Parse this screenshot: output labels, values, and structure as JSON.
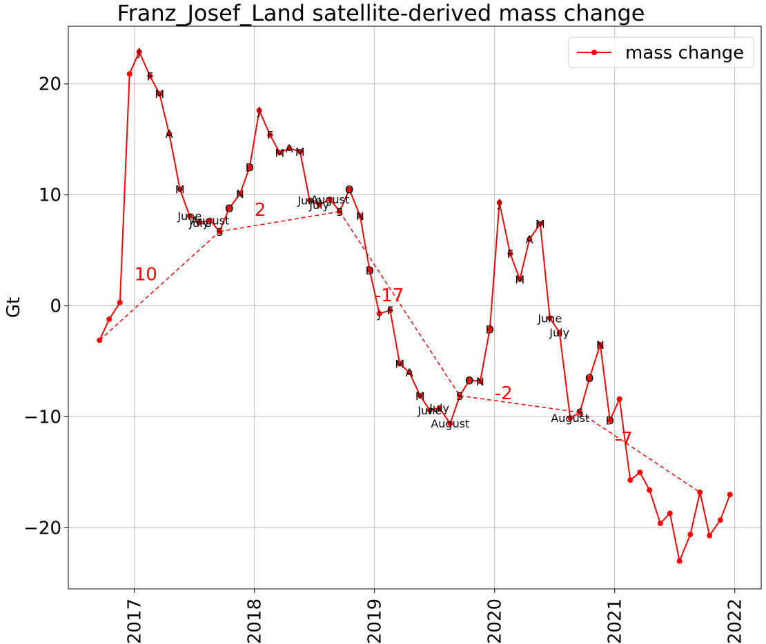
{
  "chart_data": {
    "type": "line",
    "title": "Franz_Josef_Land satellite-derived mass change",
    "xlabel": "",
    "ylabel": "Gt",
    "xlim": [
      2016.45,
      2022.22
    ],
    "ylim": [
      -25.5,
      25.2
    ],
    "grid": true,
    "legend_position": "top-right",
    "colors": {
      "series": "#ff0000",
      "grid": "#b0b0b0",
      "text": "#000000"
    },
    "x_ticks": [
      {
        "value": 2017,
        "label": "2017"
      },
      {
        "value": 2018,
        "label": "2018"
      },
      {
        "value": 2019,
        "label": "2019"
      },
      {
        "value": 2020,
        "label": "2020"
      },
      {
        "value": 2021,
        "label": "2021"
      },
      {
        "value": 2022,
        "label": "2022"
      }
    ],
    "y_ticks": [
      {
        "value": 20,
        "label": "20"
      },
      {
        "value": 10,
        "label": "10"
      },
      {
        "value": 0,
        "label": "0"
      },
      {
        "value": -10,
        "label": "−10"
      },
      {
        "value": -20,
        "label": "−20"
      }
    ],
    "series": [
      {
        "name": "mass change",
        "points": [
          {
            "x": 2016.71,
            "y": -3.1
          },
          {
            "x": 2016.79,
            "y": -1.2
          },
          {
            "x": 2016.88,
            "y": 0.3
          },
          {
            "x": 2016.96,
            "y": 20.9
          },
          {
            "x": 2017.04,
            "y": 22.9,
            "label": "J"
          },
          {
            "x": 2017.13,
            "y": 20.7,
            "label": "F"
          },
          {
            "x": 2017.21,
            "y": 19.1,
            "label": "M"
          },
          {
            "x": 2017.29,
            "y": 15.5,
            "label": "A"
          },
          {
            "x": 2017.38,
            "y": 10.5,
            "label": "M"
          },
          {
            "x": 2017.46,
            "y": 8.1,
            "label": "June"
          },
          {
            "x": 2017.54,
            "y": 7.5,
            "label": "July"
          },
          {
            "x": 2017.63,
            "y": 7.7,
            "label": "August"
          },
          {
            "x": 2017.71,
            "y": 6.7,
            "label": "S"
          },
          {
            "x": 2017.79,
            "y": 8.8,
            "label": "O"
          },
          {
            "x": 2017.88,
            "y": 10.1,
            "label": "N"
          },
          {
            "x": 2017.96,
            "y": 12.5,
            "label": "D"
          },
          {
            "x": 2018.04,
            "y": 17.6,
            "label": "J"
          },
          {
            "x": 2018.13,
            "y": 15.4,
            "label": "F"
          },
          {
            "x": 2018.21,
            "y": 13.8,
            "label": "M"
          },
          {
            "x": 2018.29,
            "y": 14.2,
            "label": "A"
          },
          {
            "x": 2018.38,
            "y": 13.9,
            "label": "M"
          },
          {
            "x": 2018.46,
            "y": 9.5,
            "label": "June"
          },
          {
            "x": 2018.54,
            "y": 9.1,
            "label": "July"
          },
          {
            "x": 2018.63,
            "y": 9.6,
            "label": "August"
          },
          {
            "x": 2018.71,
            "y": 8.5,
            "label": "S"
          },
          {
            "x": 2018.79,
            "y": 10.5,
            "label": "O"
          },
          {
            "x": 2018.88,
            "y": 8.1,
            "label": "N"
          },
          {
            "x": 2018.96,
            "y": 3.2,
            "label": "D"
          },
          {
            "x": 2019.04,
            "y": -0.7,
            "label": "J"
          },
          {
            "x": 2019.13,
            "y": -0.4,
            "label": "F"
          },
          {
            "x": 2019.21,
            "y": -5.2,
            "label": "M"
          },
          {
            "x": 2019.29,
            "y": -6.0,
            "label": "A"
          },
          {
            "x": 2019.38,
            "y": -8.1,
            "label": "M"
          },
          {
            "x": 2019.46,
            "y": -9.4,
            "label": "June"
          },
          {
            "x": 2019.54,
            "y": -9.2,
            "label": "July"
          },
          {
            "x": 2019.63,
            "y": -10.6,
            "label": "August"
          },
          {
            "x": 2019.71,
            "y": -8.1,
            "label": "S"
          },
          {
            "x": 2019.79,
            "y": -6.7,
            "label": "O"
          },
          {
            "x": 2019.88,
            "y": -6.8,
            "label": "N"
          },
          {
            "x": 2019.96,
            "y": -2.1,
            "label": "D"
          },
          {
            "x": 2020.04,
            "y": 9.3,
            "label": "J"
          },
          {
            "x": 2020.13,
            "y": 4.7,
            "label": "F"
          },
          {
            "x": 2020.21,
            "y": 2.4,
            "label": "M"
          },
          {
            "x": 2020.29,
            "y": 6.0,
            "label": "A"
          },
          {
            "x": 2020.38,
            "y": 7.4,
            "label": "M"
          },
          {
            "x": 2020.46,
            "y": -1.1,
            "label": "June"
          },
          {
            "x": 2020.54,
            "y": -2.4,
            "label": "July"
          },
          {
            "x": 2020.63,
            "y": -10.1,
            "label": "August"
          },
          {
            "x": 2020.71,
            "y": -9.6,
            "label": "S"
          },
          {
            "x": 2020.79,
            "y": -6.5,
            "label": "O"
          },
          {
            "x": 2020.88,
            "y": -3.5,
            "label": "N"
          },
          {
            "x": 2020.96,
            "y": -10.3,
            "label": "D"
          },
          {
            "x": 2021.04,
            "y": -8.4
          },
          {
            "x": 2021.13,
            "y": -15.7
          },
          {
            "x": 2021.21,
            "y": -15.0
          },
          {
            "x": 2021.29,
            "y": -16.6
          },
          {
            "x": 2021.38,
            "y": -19.6
          },
          {
            "x": 2021.46,
            "y": -18.7
          },
          {
            "x": 2021.54,
            "y": -23.0
          },
          {
            "x": 2021.63,
            "y": -20.6
          },
          {
            "x": 2021.71,
            "y": -16.8
          },
          {
            "x": 2021.79,
            "y": -20.7
          },
          {
            "x": 2021.88,
            "y": -19.3
          },
          {
            "x": 2021.96,
            "y": -17.0
          }
        ]
      }
    ],
    "trend_lines": [
      {
        "x0": 2016.71,
        "y0": -3.1,
        "x1": 2017.71,
        "y1": 6.7,
        "label": "10",
        "label_x": 2017.0,
        "label_y": 2.3
      },
      {
        "x0": 2017.71,
        "y0": 6.7,
        "x1": 2018.71,
        "y1": 8.5,
        "label": "2",
        "label_x": 2018.0,
        "label_y": 8.1
      },
      {
        "x0": 2018.71,
        "y0": 8.5,
        "x1": 2019.71,
        "y1": -8.1,
        "label": "-17",
        "label_x": 2019.0,
        "label_y": 0.4
      },
      {
        "x0": 2019.71,
        "y0": -8.1,
        "x1": 2020.71,
        "y1": -9.6,
        "label": "-2",
        "label_x": 2020.0,
        "label_y": -8.4
      },
      {
        "x0": 2020.71,
        "y0": -9.6,
        "x1": 2021.71,
        "y1": -16.8,
        "label": "-7",
        "label_x": 2021.0,
        "label_y": -12.5
      }
    ]
  }
}
